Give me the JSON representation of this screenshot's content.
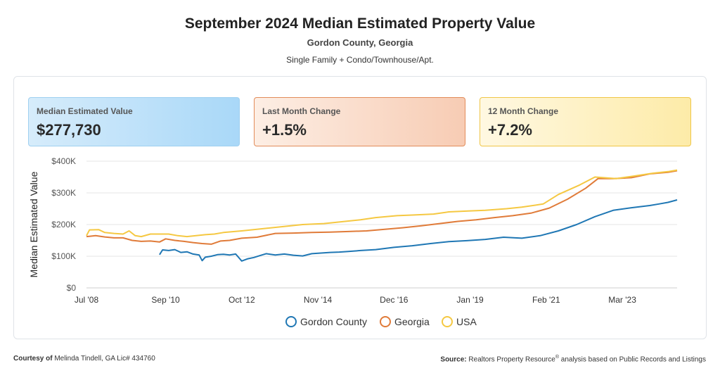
{
  "header": {
    "title": "September 2024 Median Estimated Property Value",
    "location": "Gordon County, Georgia",
    "property_types": "Single Family + Condo/Townhouse/Apt."
  },
  "cards": [
    {
      "label": "Median Estimated Value",
      "value": "$277,730",
      "color": "#a9d8f8"
    },
    {
      "label": "Last Month Change",
      "value": "+1.5%",
      "color": "#f7ccb4"
    },
    {
      "label": "12 Month Change",
      "value": "+7.2%",
      "color": "#fdeba8"
    }
  ],
  "footer": {
    "courtesy_prefix": "Courtesy of",
    "courtesy_name": "Melinda Tindell, GA Lic# 434760",
    "source_prefix": "Source:",
    "source_text": "Realtors Property Resource",
    "source_reg": "®",
    "source_suffix": " analysis based on Public Records and Listings"
  },
  "chart_data": {
    "type": "line",
    "ylabel": "Median Estimated Value",
    "xlabel": "",
    "ylim": [
      0,
      400000
    ],
    "yticks": [
      0,
      100000,
      200000,
      300000,
      400000
    ],
    "ytick_labels": [
      "$0",
      "$100K",
      "$200K",
      "$300K",
      "$400K"
    ],
    "xticks": [
      "Jul '08",
      "Sep '10",
      "Oct '12",
      "Nov '14",
      "Dec '16",
      "Jan '19",
      "Feb '21",
      "Mar '23"
    ],
    "xtick_dates": [
      "2008-07",
      "2010-09",
      "2012-10",
      "2014-11",
      "2016-12",
      "2019-01",
      "2021-02",
      "2023-03"
    ],
    "xlim": [
      "2008-07",
      "2024-09"
    ],
    "grid": true,
    "legend_position": "bottom",
    "series": [
      {
        "name": "Gordon County",
        "color": "#1f77b4",
        "points": [
          [
            "2010-07",
            105000
          ],
          [
            "2010-08",
            120000
          ],
          [
            "2010-10",
            118000
          ],
          [
            "2010-12",
            121000
          ],
          [
            "2011-02",
            112000
          ],
          [
            "2011-04",
            114000
          ],
          [
            "2011-06",
            107000
          ],
          [
            "2011-08",
            104000
          ],
          [
            "2011-09",
            86000
          ],
          [
            "2011-10",
            97000
          ],
          [
            "2011-12",
            100000
          ],
          [
            "2012-02",
            105000
          ],
          [
            "2012-04",
            106000
          ],
          [
            "2012-06",
            104000
          ],
          [
            "2012-08",
            107000
          ],
          [
            "2012-10",
            85000
          ],
          [
            "2012-12",
            92000
          ],
          [
            "2013-02",
            96000
          ],
          [
            "2013-04",
            102000
          ],
          [
            "2013-06",
            108000
          ],
          [
            "2013-09",
            104000
          ],
          [
            "2013-12",
            107000
          ],
          [
            "2014-03",
            103000
          ],
          [
            "2014-06",
            101000
          ],
          [
            "2014-09",
            108000
          ],
          [
            "2014-12",
            110000
          ],
          [
            "2015-03",
            112000
          ],
          [
            "2015-06",
            113000
          ],
          [
            "2015-09",
            115000
          ],
          [
            "2016-01",
            118000
          ],
          [
            "2016-06",
            121000
          ],
          [
            "2016-12",
            128000
          ],
          [
            "2017-06",
            133000
          ],
          [
            "2017-12",
            140000
          ],
          [
            "2018-06",
            146000
          ],
          [
            "2018-12",
            149000
          ],
          [
            "2019-06",
            153000
          ],
          [
            "2019-12",
            160000
          ],
          [
            "2020-06",
            157000
          ],
          [
            "2020-12",
            165000
          ],
          [
            "2021-06",
            180000
          ],
          [
            "2021-12",
            200000
          ],
          [
            "2022-06",
            225000
          ],
          [
            "2022-12",
            245000
          ],
          [
            "2023-06",
            253000
          ],
          [
            "2023-12",
            260000
          ],
          [
            "2024-03",
            265000
          ],
          [
            "2024-06",
            270000
          ],
          [
            "2024-09",
            277730
          ]
        ]
      },
      {
        "name": "Georgia",
        "color": "#e07b39",
        "points": [
          [
            "2008-07",
            162000
          ],
          [
            "2008-10",
            165000
          ],
          [
            "2009-01",
            161000
          ],
          [
            "2009-04",
            158000
          ],
          [
            "2009-07",
            158000
          ],
          [
            "2009-10",
            150000
          ],
          [
            "2010-01",
            147000
          ],
          [
            "2010-04",
            148000
          ],
          [
            "2010-07",
            145000
          ],
          [
            "2010-09",
            155000
          ],
          [
            "2010-12",
            150000
          ],
          [
            "2011-03",
            147000
          ],
          [
            "2011-06",
            143000
          ],
          [
            "2011-09",
            140000
          ],
          [
            "2011-12",
            138000
          ],
          [
            "2012-03",
            148000
          ],
          [
            "2012-06",
            150000
          ],
          [
            "2012-10",
            157000
          ],
          [
            "2013-03",
            160000
          ],
          [
            "2013-09",
            172000
          ],
          [
            "2014-03",
            173000
          ],
          [
            "2014-09",
            175000
          ],
          [
            "2015-03",
            176000
          ],
          [
            "2015-09",
            178000
          ],
          [
            "2016-03",
            180000
          ],
          [
            "2016-09",
            185000
          ],
          [
            "2017-03",
            190000
          ],
          [
            "2017-09",
            196000
          ],
          [
            "2018-03",
            203000
          ],
          [
            "2018-09",
            210000
          ],
          [
            "2019-03",
            215000
          ],
          [
            "2019-09",
            222000
          ],
          [
            "2020-03",
            228000
          ],
          [
            "2020-09",
            236000
          ],
          [
            "2021-03",
            252000
          ],
          [
            "2021-09",
            280000
          ],
          [
            "2022-03",
            315000
          ],
          [
            "2022-07",
            345000
          ],
          [
            "2022-12",
            345000
          ],
          [
            "2023-06",
            348000
          ],
          [
            "2023-12",
            360000
          ],
          [
            "2024-06",
            365000
          ],
          [
            "2024-09",
            370000
          ]
        ]
      },
      {
        "name": "USA",
        "color": "#f5c842",
        "points": [
          [
            "2008-07",
            165000
          ],
          [
            "2008-08",
            183000
          ],
          [
            "2008-11",
            184000
          ],
          [
            "2009-01",
            175000
          ],
          [
            "2009-04",
            172000
          ],
          [
            "2009-07",
            170000
          ],
          [
            "2009-09",
            180000
          ],
          [
            "2009-11",
            165000
          ],
          [
            "2010-01",
            162000
          ],
          [
            "2010-04",
            170000
          ],
          [
            "2010-07",
            170000
          ],
          [
            "2010-10",
            170000
          ],
          [
            "2011-01",
            165000
          ],
          [
            "2011-04",
            162000
          ],
          [
            "2011-07",
            165000
          ],
          [
            "2011-10",
            168000
          ],
          [
            "2012-01",
            170000
          ],
          [
            "2012-04",
            175000
          ],
          [
            "2012-10",
            180000
          ],
          [
            "2013-06",
            188000
          ],
          [
            "2014-01",
            195000
          ],
          [
            "2014-06",
            200000
          ],
          [
            "2015-01",
            203000
          ],
          [
            "2015-06",
            208000
          ],
          [
            "2016-01",
            215000
          ],
          [
            "2016-06",
            222000
          ],
          [
            "2017-01",
            228000
          ],
          [
            "2017-06",
            230000
          ],
          [
            "2018-01",
            233000
          ],
          [
            "2018-06",
            240000
          ],
          [
            "2019-01",
            243000
          ],
          [
            "2019-06",
            245000
          ],
          [
            "2020-01",
            250000
          ],
          [
            "2020-06",
            255000
          ],
          [
            "2021-01",
            265000
          ],
          [
            "2021-06",
            295000
          ],
          [
            "2022-01",
            325000
          ],
          [
            "2022-06",
            350000
          ],
          [
            "2023-01",
            345000
          ],
          [
            "2023-06",
            352000
          ],
          [
            "2024-01",
            362000
          ],
          [
            "2024-06",
            367000
          ],
          [
            "2024-09",
            372000
          ]
        ]
      }
    ]
  }
}
